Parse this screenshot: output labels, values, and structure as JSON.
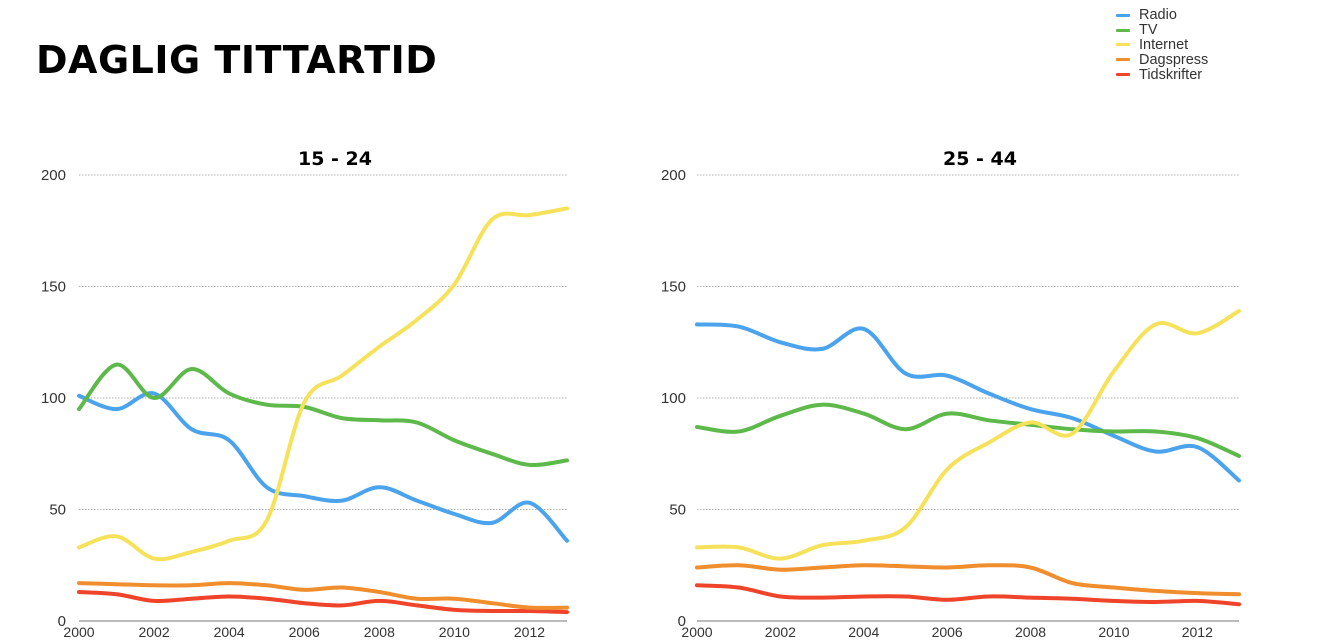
{
  "page": {
    "title": "DAGLIG TITTARTID"
  },
  "legend": [
    {
      "label": "Radio",
      "color": "#4aa3ec"
    },
    {
      "label": "TV",
      "color": "#5cb94a"
    },
    {
      "label": "Internet",
      "color": "#f6e25a"
    },
    {
      "label": "Dagspress",
      "color": "#f08d2c"
    },
    {
      "label": "Tidskrifter",
      "color": "#f0442a"
    }
  ],
  "chart_data": [
    {
      "type": "line",
      "title": "15 - 24",
      "xlabel": "",
      "ylabel": "",
      "x": [
        2000,
        2001,
        2002,
        2003,
        2004,
        2005,
        2006,
        2007,
        2008,
        2009,
        2010,
        2011,
        2012,
        2013
      ],
      "xticks": [
        "2000",
        "2002",
        "2004",
        "2006",
        "2008",
        "2010",
        "2012"
      ],
      "yticks": [
        "0",
        "50",
        "100",
        "150",
        "200"
      ],
      "xlim": [
        2000,
        2013
      ],
      "ylim": [
        0,
        200
      ],
      "grid": "horizontal dotted",
      "series": [
        {
          "name": "Radio",
          "color": "#4aa3ec",
          "values": [
            101,
            95,
            102,
            86,
            81,
            60,
            56,
            54,
            60,
            54,
            48,
            44,
            53,
            36
          ]
        },
        {
          "name": "TV",
          "color": "#5cb94a",
          "values": [
            95,
            115,
            100,
            113,
            102,
            97,
            96,
            91,
            90,
            89,
            81,
            75,
            70,
            72
          ]
        },
        {
          "name": "Internet",
          "color": "#f6e25a",
          "values": [
            33,
            38,
            28,
            31,
            36,
            45,
            98,
            110,
            123,
            135,
            151,
            180,
            182,
            185
          ]
        },
        {
          "name": "Dagspress",
          "color": "#f08d2c",
          "values": [
            17,
            16.5,
            16,
            16,
            17,
            16,
            14,
            15,
            13,
            10,
            10,
            8,
            6,
            6
          ]
        },
        {
          "name": "Tidskrifter",
          "color": "#f0442a",
          "values": [
            13,
            12,
            9,
            10,
            11,
            10,
            8,
            7,
            9,
            7,
            5,
            4.5,
            4.5,
            4
          ]
        }
      ]
    },
    {
      "type": "line",
      "title": "25 - 44",
      "xlabel": "",
      "ylabel": "",
      "x": [
        2000,
        2001,
        2002,
        2003,
        2004,
        2005,
        2006,
        2007,
        2008,
        2009,
        2010,
        2011,
        2012,
        2013
      ],
      "xticks": [
        "2000",
        "2002",
        "2004",
        "2006",
        "2008",
        "2010",
        "2012"
      ],
      "yticks": [
        "0",
        "50",
        "100",
        "150",
        "200"
      ],
      "xlim": [
        2000,
        2013
      ],
      "ylim": [
        0,
        200
      ],
      "grid": "horizontal dotted",
      "series": [
        {
          "name": "Radio",
          "color": "#4aa3ec",
          "values": [
            133,
            132,
            125,
            122,
            131,
            111,
            110,
            102,
            95,
            91,
            83,
            76,
            78,
            63
          ]
        },
        {
          "name": "TV",
          "color": "#5cb94a",
          "values": [
            87,
            85,
            92,
            97,
            93,
            86,
            93,
            90,
            88,
            86,
            85,
            85,
            82,
            74
          ]
        },
        {
          "name": "Internet",
          "color": "#f6e25a",
          "values": [
            33,
            33,
            28,
            34,
            36,
            42,
            68,
            80,
            89,
            84,
            112,
            133,
            129,
            139
          ]
        },
        {
          "name": "Dagspress",
          "color": "#f08d2c",
          "values": [
            24,
            25,
            23,
            24,
            25,
            24.5,
            24,
            25,
            24,
            17,
            15,
            13.5,
            12.5,
            12
          ]
        },
        {
          "name": "Tidskrifter",
          "color": "#f0442a",
          "values": [
            16,
            15,
            11,
            10.5,
            11,
            11,
            9.5,
            11,
            10.5,
            10,
            9,
            8.5,
            9,
            7.5
          ]
        }
      ]
    }
  ]
}
